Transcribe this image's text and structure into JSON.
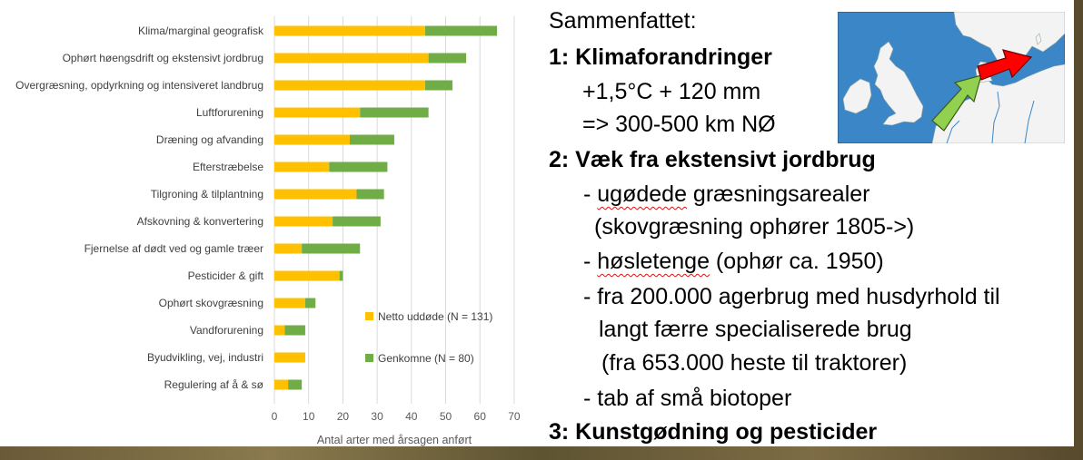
{
  "chart_data": {
    "type": "bar",
    "orientation": "horizontal",
    "stacked": true,
    "categories": [
      "Klima/marginal geografisk",
      "Ophørt høengsdrift og ekstensivt jordbrug",
      "Overgræsning, opdyrkning og intensiveret landbrug",
      "Luftforurening",
      "Dræning og afvanding",
      "Efterstræbelse",
      "Tilgroning & tilplantning",
      "Afskovning & konvertering",
      "Fjernelse af dødt ved og gamle træer",
      "Pesticider & gift",
      "Ophørt skovgræsning",
      "Vandforurening",
      "Byudvikling, vej, industri",
      "Regulering af å & sø"
    ],
    "series": [
      {
        "name": "Netto uddøde (N = 131)",
        "color": "#ffc000",
        "values": [
          44,
          45,
          44,
          25,
          22,
          16,
          24,
          17,
          8,
          19,
          9,
          3,
          9,
          4
        ]
      },
      {
        "name": "Genkomne (N = 80)",
        "color": "#70ad47",
        "values": [
          21,
          11,
          8,
          20,
          13,
          17,
          8,
          14,
          17,
          1,
          3,
          6,
          0,
          4
        ]
      }
    ],
    "xlabel": "Antal arter med årsagen anført",
    "xticks": [
      0,
      10,
      20,
      30,
      40,
      50,
      60,
      70
    ],
    "xlim": [
      0,
      70
    ],
    "grid": true,
    "legend_position": "lower-right"
  },
  "summary": {
    "heading": "Sammenfattet:",
    "lines": [
      {
        "text": "1: Klimaforandringer",
        "bold": true
      },
      {
        "text": "+1,5°C + 120 mm"
      },
      {
        "text": "=> 300-500 km NØ"
      },
      {
        "text": "2: Væk fra ekstensivt jordbrug",
        "bold": true
      },
      {
        "text": "- ugødede græsningsarealer"
      },
      {
        "text": "(skovgræsning ophører 1805->)"
      },
      {
        "text": "- høsletenge (ophør ca. 1950)"
      },
      {
        "text": "- fra 200.000 agerbrug med husdyrhold til"
      },
      {
        "text": "langt færre specialiserede brug"
      },
      {
        "text": "(fra 653.000 heste til traktorer)"
      },
      {
        "text": "- tab af små biotoper"
      },
      {
        "text": "3: Kunstgødning og pesticider",
        "bold": true
      }
    ]
  },
  "map": {
    "sea_color": "#3b86c6",
    "land_color": "#f3f3f3",
    "arrows": [
      {
        "color": "#92d050",
        "meaning": "shift north-east"
      },
      {
        "color": "#ff0000",
        "meaning": "shift north-east"
      }
    ]
  }
}
